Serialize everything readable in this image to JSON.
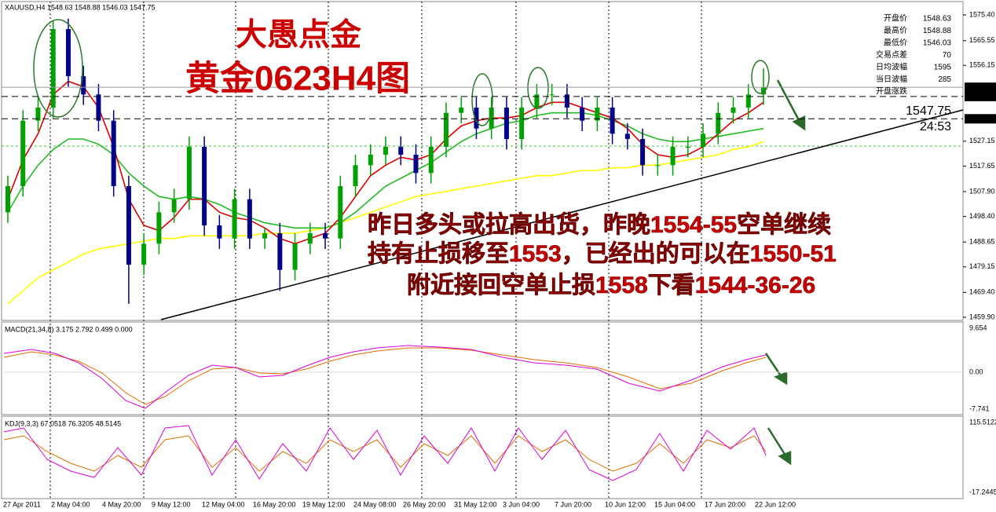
{
  "chart_data": {
    "type": "candlestick",
    "header": "XAUUSD,H4  1548.63 1548.88 1546.03 1547.75",
    "ylim": [
      1458.7,
      1581.1
    ],
    "yticks": [
      {
        "value": 1575.4,
        "label": "1575.40"
      },
      1565.55,
      1556.15,
      1527.15,
      1517.65,
      {
        "value": 1507.9,
        "label": "1507.90"
      },
      {
        "value": 1498.4,
        "label": "1498.40"
      },
      1488.65,
      1479.15,
      {
        "value": 1469.4,
        "label": "1469.40"
      },
      {
        "value": 1459.9,
        "label": "1459.90"
      }
    ],
    "price_lines": [
      1547.75,
      1544.24,
      1535.71
    ],
    "up_color": "#00a000",
    "down_color": "#00008b",
    "open": [
      1500,
      1510,
      1535,
      1540,
      1570,
      1552,
      1545,
      1535,
      1510,
      1480,
      1488,
      1500,
      1505,
      1525,
      1495,
      1490,
      1505,
      1490,
      1492,
      1478,
      1488,
      1492,
      1490,
      1510,
      1518,
      1522,
      1525,
      1522,
      1515,
      1525,
      1538,
      1540,
      1532,
      1540,
      1528,
      1540,
      1545,
      1545,
      1540,
      1535,
      1540,
      1530,
      1528,
      1518,
      1518,
      1525,
      1525,
      1530,
      1538,
      1540,
      1545
    ],
    "high": [
      1514,
      1539,
      1544,
      1573,
      1574,
      1556,
      1549,
      1539,
      1514,
      1492,
      1504,
      1509,
      1529,
      1529,
      1499,
      1509,
      1509,
      1494,
      1496,
      1492,
      1496,
      1496,
      1514,
      1522,
      1526,
      1529,
      1529,
      1526,
      1529,
      1542,
      1544,
      1544,
      1544,
      1544,
      1544,
      1549,
      1549,
      1549,
      1544,
      1544,
      1544,
      1534,
      1532,
      1522,
      1529,
      1529,
      1534,
      1542,
      1544,
      1549,
      1555
    ],
    "low": [
      1496,
      1506,
      1531,
      1536,
      1548,
      1541,
      1531,
      1506,
      1465,
      1476,
      1484,
      1496,
      1501,
      1491,
      1486,
      1486,
      1486,
      1486,
      1470,
      1474,
      1484,
      1486,
      1486,
      1506,
      1514,
      1518,
      1518,
      1511,
      1511,
      1521,
      1534,
      1528,
      1528,
      1524,
      1524,
      1536,
      1541,
      1536,
      1531,
      1531,
      1526,
      1524,
      1514,
      1514,
      1514,
      1521,
      1521,
      1526,
      1534,
      1536,
      1541
    ],
    "close": [
      1510,
      1535,
      1540,
      1570,
      1552,
      1545,
      1535,
      1510,
      1480,
      1488,
      1500,
      1505,
      1525,
      1495,
      1490,
      1505,
      1490,
      1492,
      1478,
      1488,
      1492,
      1490,
      1510,
      1518,
      1522,
      1525,
      1522,
      1515,
      1525,
      1538,
      1540,
      1532,
      1540,
      1528,
      1540,
      1545,
      1545,
      1540,
      1535,
      1540,
      1530,
      1528,
      1518,
      1518,
      1525,
      1525,
      1530,
      1538,
      1540,
      1545,
      1547.75
    ],
    "series": [
      {
        "color": "#ffff00",
        "values": [
          1465,
          1470,
          1475,
          1478,
          1481,
          1484,
          1486,
          1487,
          1488,
          1489,
          1490,
          1490,
          1491,
          1491,
          1491,
          1491,
          1491,
          1492,
          1492,
          1492,
          1493,
          1494,
          1496,
          1498,
          1500,
          1502,
          1504,
          1506,
          1507,
          1508,
          1509,
          1510,
          1511,
          1512,
          1513,
          1514,
          1514,
          1515,
          1516,
          1516,
          1517,
          1517,
          1518,
          1518,
          1519,
          1520,
          1521,
          1522,
          1524,
          1525,
          1527
        ]
      },
      {
        "color": "#22bb22",
        "values": [
          1500,
          1510,
          1518,
          1524,
          1528,
          1528,
          1526,
          1522,
          1515,
          1510,
          1506,
          1505,
          1506,
          1505,
          1503,
          1500,
          1498,
          1496,
          1495,
          1494,
          1494,
          1494,
          1496,
          1500,
          1505,
          1510,
          1513,
          1516,
          1519,
          1523,
          1527,
          1530,
          1532,
          1534,
          1535,
          1537,
          1538,
          1538,
          1538,
          1537,
          1535,
          1533,
          1530,
          1528,
          1527,
          1527,
          1528,
          1529,
          1530,
          1531,
          1532
        ]
      },
      {
        "color": "#dd0000",
        "values": [
          1505,
          1520,
          1530,
          1545,
          1550,
          1548,
          1540,
          1525,
          1505,
          1495,
          1493,
          1498,
          1505,
          1505,
          1500,
          1498,
          1497,
          1494,
          1490,
          1488,
          1490,
          1492,
          1498,
          1506,
          1514,
          1518,
          1521,
          1520,
          1522,
          1528,
          1533,
          1535,
          1536,
          1536,
          1537,
          1540,
          1542,
          1542,
          1540,
          1538,
          1536,
          1532,
          1526,
          1522,
          1521,
          1522,
          1525,
          1530,
          1535,
          1538,
          1542
        ]
      }
    ]
  },
  "title_lines": [
    "大愚点金",
    "黄金0623H4图"
  ],
  "annotation_lines": [
    "昨日多头或拉高出货，昨晚1554-55空单继续",
    "持有止损移至1553，已经出的可以在1550-51",
    "附近接回空单止损1558下看1544-36-26"
  ],
  "info_panel": [
    {
      "label": "开盘价",
      "value": "1548.63"
    },
    {
      "label": "最高价",
      "value": "1548.88"
    },
    {
      "label": "最低价",
      "value": "1546.03"
    },
    {
      "label": "交易点差",
      "value": "70"
    },
    {
      "label": "日均波幅",
      "value": "1595"
    },
    {
      "label": "当日波幅",
      "value": "285"
    },
    {
      "label": "开盘涨跌",
      "value": ""
    }
  ],
  "big_price": "1547.75",
  "countdown": "24:53",
  "macd": {
    "header": "MACD(21,34,8) 3.175 2.792 0.499 0.000",
    "ticks": [
      "9.654",
      "0.00",
      "-7.741"
    ]
  },
  "kdj": {
    "header": "KDJ(9,3,3) 67.0518 76.3205 48.5145",
    "ticks": [
      "115.5122",
      "-17.2445"
    ]
  },
  "time_axis": [
    "27 Apr 2011",
    "2 May 04:00",
    "4 May 20:00",
    "9 May 12:00",
    "12 May 04:00",
    "16 May 20:00",
    "19 May 12:00",
    "24 May 08:00",
    "26 May 20:00",
    "31 May 12:00",
    "3 Jun 04:00",
    "7 Jun 20:00",
    "10 Jun 12:00",
    "15 Jun 04:00",
    "17 Jun 20:00",
    "22 Jun 12:00"
  ]
}
